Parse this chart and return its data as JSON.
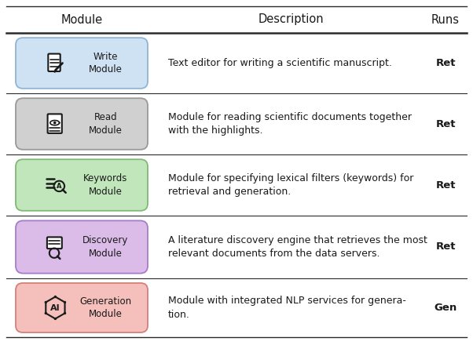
{
  "header": [
    "Module",
    "Description",
    "Runs"
  ],
  "rows": [
    {
      "module_name": "Write\nModule",
      "icon_label": "write",
      "description": "Text editor for writing a scientific manuscript.",
      "runs": "Ret",
      "bg_color": "#cfe2f3",
      "border_color": "#90b4d4"
    },
    {
      "module_name": "Read\nModule",
      "icon_label": "read",
      "description": "Module for reading scientific documents together\nwith the highlights.",
      "runs": "Ret",
      "bg_color": "#d0d0d0",
      "border_color": "#999999"
    },
    {
      "module_name": "Keywords\nModule",
      "icon_label": "keywords",
      "description": "Module for specifying lexical filters (keywords) for\nretrieval and generation.",
      "runs": "Ret",
      "bg_color": "#c2e6bc",
      "border_color": "#80b875"
    },
    {
      "module_name": "Discovery\nModule",
      "icon_label": "discovery",
      "description": "A literature discovery engine that retrieves the most\nrelevant documents from the data servers.",
      "runs": "Ret",
      "bg_color": "#dbbce8",
      "border_color": "#a87cc8"
    },
    {
      "module_name": "Generation\nModule",
      "icon_label": "generation",
      "description": "Module with integrated NLP services for genera-\ntion.",
      "runs": "Gen",
      "bg_color": "#f5c0bb",
      "border_color": "#d48078"
    }
  ],
  "bg_white": "#ffffff",
  "line_color": "#2a2a2a",
  "text_color": "#1a1a1a",
  "font_size_header": 10.5,
  "font_size_text": 9.0,
  "font_size_module": 8.5,
  "font_size_runs": 9.5
}
